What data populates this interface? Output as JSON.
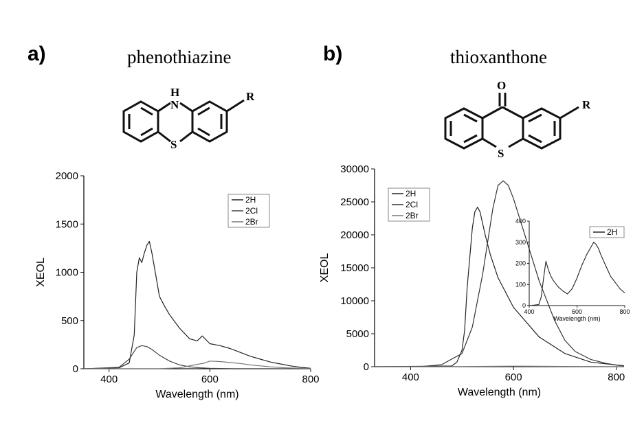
{
  "panels": {
    "a": {
      "letter": "a)",
      "molecule": "phenothiazine",
      "hetero_top": "H\nN",
      "hetero_top_h": "H",
      "hetero_top_n": "N",
      "hetero_bottom": "S",
      "substituent": "R"
    },
    "b": {
      "letter": "b)",
      "molecule": "thioxanthone",
      "hetero_top": "O",
      "hetero_bottom": "S",
      "substituent": "R"
    }
  },
  "chart_data": [
    {
      "id": "a",
      "type": "line",
      "xlabel": "Wavelength (nm)",
      "ylabel": "XEOL",
      "xlim": [
        350,
        800
      ],
      "ylim": [
        0,
        2000
      ],
      "xticks": [
        400,
        600,
        800
      ],
      "yticks": [
        0,
        500,
        1000,
        1500,
        2000
      ],
      "legend_position": "top-right",
      "series": [
        {
          "name": "2H",
          "x": [
            350,
            420,
            440,
            450,
            455,
            460,
            465,
            470,
            475,
            480,
            485,
            490,
            500,
            510,
            520,
            540,
            560,
            575,
            585,
            600,
            620,
            640,
            660,
            680,
            700,
            720,
            740,
            760,
            780,
            800
          ],
          "y": [
            0,
            10,
            60,
            350,
            1000,
            1150,
            1100,
            1200,
            1280,
            1320,
            1200,
            1050,
            750,
            650,
            560,
            420,
            310,
            290,
            340,
            260,
            240,
            210,
            170,
            130,
            100,
            70,
            50,
            30,
            15,
            5
          ]
        },
        {
          "name": "2Cl",
          "x": [
            350,
            420,
            440,
            455,
            465,
            475,
            485,
            500,
            520,
            540,
            560,
            580,
            600,
            650,
            700,
            800
          ],
          "y": [
            0,
            15,
            100,
            220,
            240,
            230,
            200,
            140,
            80,
            40,
            20,
            10,
            5,
            0,
            0,
            0
          ]
        },
        {
          "name": "2Br",
          "x": [
            350,
            500,
            540,
            570,
            590,
            600,
            620,
            640,
            660,
            680,
            700,
            720,
            750,
            800
          ],
          "y": [
            0,
            0,
            10,
            40,
            60,
            80,
            75,
            65,
            55,
            40,
            30,
            20,
            10,
            0
          ]
        }
      ]
    },
    {
      "id": "b",
      "type": "line",
      "xlabel": "Wavelength (nm)",
      "ylabel": "XEOL",
      "xlim": [
        330,
        815
      ],
      "ylim": [
        0,
        30000
      ],
      "xticks": [
        400,
        600,
        800
      ],
      "yticks": [
        0,
        5000,
        10000,
        15000,
        20000,
        25000,
        30000
      ],
      "legend_position": "top-left",
      "series": [
        {
          "name": "2H",
          "x": [
            330,
            480,
            490,
            500,
            505,
            510,
            520,
            525,
            530,
            535,
            545,
            555,
            570,
            600,
            650,
            700,
            750,
            800,
            815
          ],
          "y": [
            0,
            100,
            700,
            2500,
            5500,
            12000,
            21000,
            23500,
            24200,
            23500,
            20000,
            17000,
            13500,
            9000,
            4500,
            2000,
            700,
            250,
            100
          ]
        },
        {
          "name": "2Cl",
          "x": [
            330,
            420,
            460,
            500,
            520,
            540,
            560,
            570,
            580,
            590,
            600,
            620,
            650,
            680,
            700,
            720,
            750,
            780,
            800,
            815
          ],
          "y": [
            0,
            20,
            300,
            2000,
            6000,
            14000,
            24000,
            27500,
            28200,
            27500,
            25500,
            20500,
            13000,
            7000,
            4000,
            2300,
            1100,
            500,
            250,
            150
          ]
        },
        {
          "name": "2Br",
          "x": [
            330,
            450,
            500,
            550,
            600,
            700,
            815
          ],
          "y": [
            0,
            0,
            20,
            50,
            80,
            40,
            0
          ]
        }
      ],
      "inset": {
        "type": "line",
        "xlabel": "Wavelength (nm)",
        "xlim": [
          400,
          800
        ],
        "ylim": [
          0,
          400
        ],
        "xticks": [
          400,
          600,
          800
        ],
        "yticks": [
          0,
          100,
          200,
          300,
          400
        ],
        "series": [
          {
            "name": "2H",
            "x": [
              400,
              440,
              450,
              460,
              470,
              480,
              490,
              500,
              520,
              540,
              560,
              580,
              600,
              620,
              640,
              660,
              670,
              680,
              690,
              700,
              720,
              740,
              760,
              780,
              800
            ],
            "y": [
              0,
              5,
              40,
              130,
              210,
              170,
              140,
              120,
              90,
              70,
              55,
              80,
              130,
              190,
              240,
              280,
              300,
              290,
              270,
              240,
              190,
              140,
              110,
              80,
              60
            ]
          }
        ]
      }
    }
  ]
}
